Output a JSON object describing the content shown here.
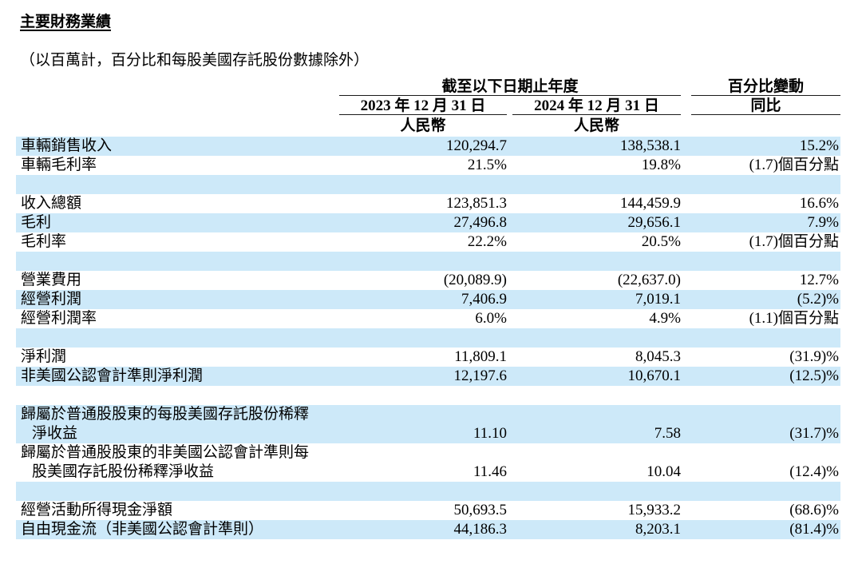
{
  "page": {
    "title": "主要財務業績",
    "subtitle": "（以百萬計，百分比和每股美國存託股份數據除外）"
  },
  "header": {
    "period_group": "截至以下日期止年度",
    "change_group": "百分比變動",
    "col_2023": "2023 年 12 月 31 日",
    "col_2024": "2024 年 12 月 31 日",
    "col_yoy": "同比",
    "currency_2023": "人民幣",
    "currency_2024": "人民幣"
  },
  "colors": {
    "row_highlight": "#cde9f9",
    "rule": "#1a1a1a"
  },
  "rows": [
    {
      "label": "車輛銷售收入",
      "v1": "120,294.7",
      "v2": "138,538.1",
      "yoy": "15.2%"
    },
    {
      "label": "車輛毛利率",
      "v1": "21.5%",
      "v2": "19.8%",
      "yoy": "(1.7)個百分點"
    },
    {
      "label": "收入總額",
      "v1": "123,851.3",
      "v2": "144,459.9",
      "yoy": "16.6%"
    },
    {
      "label": "毛利",
      "v1": "27,496.8",
      "v2": "29,656.1",
      "yoy": "7.9%"
    },
    {
      "label": "毛利率",
      "v1": "22.2%",
      "v2": "20.5%",
      "yoy": "(1.7)個百分點"
    },
    {
      "label": "營業費用",
      "v1": "(20,089.9)",
      "v2": "(22,637.0)",
      "yoy": "12.7%"
    },
    {
      "label": "經營利潤",
      "v1": "7,406.9",
      "v2": "7,019.1",
      "yoy": "(5.2)%"
    },
    {
      "label": "經營利潤率",
      "v1": "6.0%",
      "v2": "4.9%",
      "yoy": "(1.1)個百分點"
    },
    {
      "label": "淨利潤",
      "v1": "11,809.1",
      "v2": "8,045.3",
      "yoy": "(31.9)%"
    },
    {
      "label": "非美國公認會計準則淨利潤",
      "v1": "12,197.6",
      "v2": "10,670.1",
      "yoy": "(12.5)%"
    },
    {
      "label1": "歸屬於普通股股東的每股美國存託股份稀釋",
      "label2": "淨收益",
      "v1": "11.10",
      "v2": "7.58",
      "yoy": "(31.7)%"
    },
    {
      "label1": "歸屬於普通股股東的非美國公認會計準則每",
      "label2": "股美國存託股份稀釋淨收益",
      "v1": "11.46",
      "v2": "10.04",
      "yoy": "(12.4)%"
    },
    {
      "label": "經營活動所得現金淨額",
      "v1": "50,693.5",
      "v2": "15,933.2",
      "yoy": "(68.6)%"
    },
    {
      "label": "自由現金流（非美國公認會計準則）",
      "v1": "44,186.3",
      "v2": "8,203.1",
      "yoy": "(81.4)%"
    }
  ]
}
